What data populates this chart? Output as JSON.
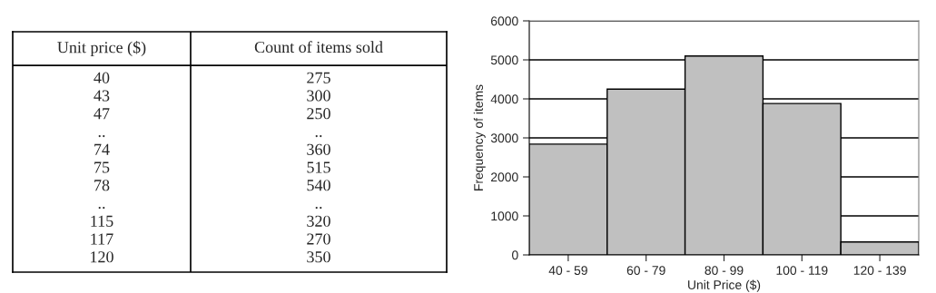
{
  "chart_data": [
    {
      "type": "other",
      "annotations": [
        "Unit price ($)",
        "Count of items sold",
        "40",
        "275",
        "43",
        "300",
        "47",
        "250",
        "..",
        "..",
        "74",
        "360",
        "75",
        "515",
        "78",
        "540",
        "..",
        "..",
        "115",
        "320",
        "117",
        "270",
        "120",
        "350"
      ]
    },
    {
      "type": "bar",
      "categories": [
        "40 - 59",
        "60 - 79",
        "80 - 99",
        "100 - 119",
        "120 - 139"
      ],
      "values": [
        2840,
        4250,
        5100,
        3880,
        330
      ],
      "color": "#c0c0c0",
      "xlabel": "Unit Price ($)",
      "ylabel": "Frequency of items",
      "ylim": [
        0,
        6000
      ],
      "yticks": [
        0,
        1000,
        2000,
        3000,
        4000,
        5000,
        6000
      ],
      "grid": "y"
    }
  ]
}
